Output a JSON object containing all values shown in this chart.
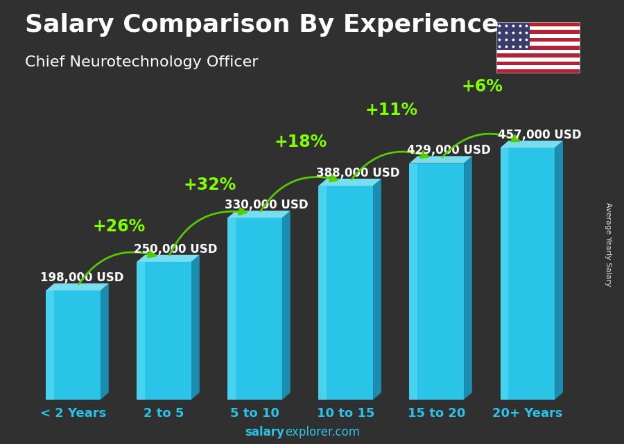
{
  "title": "Salary Comparison By Experience",
  "subtitle": "Chief Neurotechnology Officer",
  "categories": [
    "< 2 Years",
    "2 to 5",
    "5 to 10",
    "10 to 15",
    "15 to 20",
    "20+ Years"
  ],
  "values": [
    198000,
    250000,
    330000,
    388000,
    429000,
    457000
  ],
  "value_labels": [
    "198,000 USD",
    "250,000 USD",
    "330,000 USD",
    "388,000 USD",
    "429,000 USD",
    "457,000 USD"
  ],
  "pct_labels": [
    "+26%",
    "+32%",
    "+18%",
    "+11%",
    "+6%"
  ],
  "bar_face_color": "#2ac4e8",
  "bar_light_color": "#5ddcf5",
  "bar_side_color": "#1a8db0",
  "bar_top_color": "#7ee8f8",
  "bg_color": "#3d3d3d",
  "title_color": "#ffffff",
  "subtitle_color": "#ffffff",
  "value_label_color": "#ffffff",
  "pct_color": "#7fff00",
  "arrow_color": "#55cc00",
  "xtick_color": "#2ac4e8",
  "footer_salary_color": "#2ac4e8",
  "footer_explorer_color": "#2ac4e8",
  "ylabel_text": "Average Yearly Salary",
  "footer_bold": "salary",
  "footer_normal": "explorer.com",
  "ylim": [
    0,
    580000
  ],
  "bar_width": 0.6,
  "title_fontsize": 26,
  "subtitle_fontsize": 16,
  "pct_fontsize": 17,
  "value_fontsize": 12,
  "xtick_fontsize": 13
}
